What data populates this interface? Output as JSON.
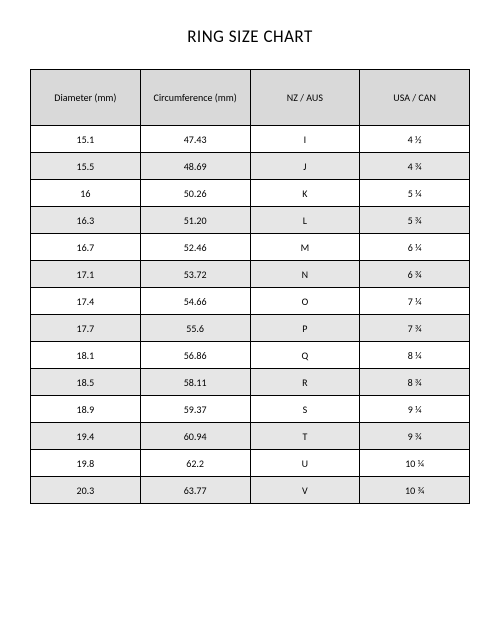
{
  "title": "RING SIZE CHART",
  "table": {
    "type": "table",
    "background_color": "#ffffff",
    "border_color": "#000000",
    "header_bg": "#d9d9d9",
    "row_alt_bg": "#e6e6e6",
    "row_bg": "#ffffff",
    "font_family": "Calibri",
    "header_fontsize": 10,
    "cell_fontsize": 10,
    "columns": [
      {
        "label": "Diameter (mm)",
        "align": "center"
      },
      {
        "label": "Circumference (mm)",
        "align": "center"
      },
      {
        "label": "NZ / AUS",
        "align": "center"
      },
      {
        "label": "USA / CAN",
        "align": "center"
      }
    ],
    "rows": [
      [
        "15.1",
        "47.43",
        "I",
        "4 ½"
      ],
      [
        "15.5",
        "48.69",
        "J",
        "4 ¾"
      ],
      [
        "16",
        "50.26",
        "K",
        "5 ¼"
      ],
      [
        "16.3",
        "51.20",
        "L",
        "5 ¾"
      ],
      [
        "16.7",
        "52.46",
        "M",
        "6 ¼"
      ],
      [
        "17.1",
        "53.72",
        "N",
        "6 ¾"
      ],
      [
        "17.4",
        "54.66",
        "O",
        "7 ¼"
      ],
      [
        "17.7",
        "55.6",
        "P",
        "7 ¾"
      ],
      [
        "18.1",
        "56.86",
        "Q",
        "8 ¼"
      ],
      [
        "18.5",
        "58.11",
        "R",
        "8 ¾"
      ],
      [
        "18.9",
        "59.37",
        "S",
        "9 ¼"
      ],
      [
        "19.4",
        "60.94",
        "T",
        "9 ¾"
      ],
      [
        "19.8",
        "62.2",
        "U",
        "10 ¼"
      ],
      [
        "20.3",
        "63.77",
        "V",
        "10 ¾"
      ]
    ]
  }
}
